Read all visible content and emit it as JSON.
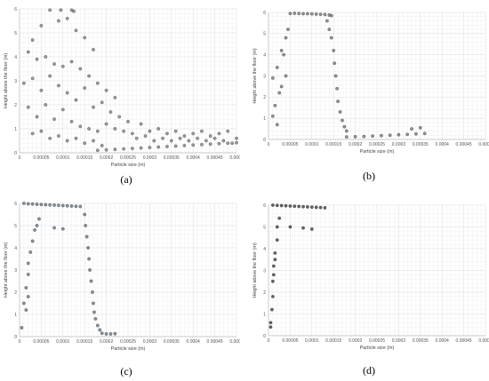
{
  "captions": [
    "(a)",
    "(b)",
    "(c)",
    "(d)"
  ],
  "chart_data": [
    {
      "type": "scatter",
      "title": "",
      "xlabel": "Particle size (m)",
      "ylabel": "Height above the floor (m)",
      "xlim": [
        0,
        0.0005
      ],
      "ylim": [
        0,
        6
      ],
      "xticks": [
        "0",
        "0.00005",
        "0.0001",
        "0.00015",
        "0.0002",
        "0.00025",
        "0.0003",
        "0.00035",
        "0.0004",
        "0.00045",
        "0.0005"
      ],
      "yticks": [
        "0",
        "1",
        "2",
        "3",
        "4",
        "5",
        "6"
      ],
      "grid": true,
      "marker_color": "#7a7a7a",
      "points": [
        [
          7e-05,
          5.95
        ],
        [
          9.5e-05,
          5.95
        ],
        [
          0.00012,
          5.95
        ],
        [
          0.000125,
          5.9
        ],
        [
          3e-05,
          4.7
        ],
        [
          5e-05,
          5.3
        ],
        [
          9e-05,
          5.5
        ],
        [
          0.00011,
          5.6
        ],
        [
          0.00013,
          5.1
        ],
        [
          0.00015,
          4.8
        ],
        [
          0.00017,
          4.3
        ],
        [
          2e-05,
          4.2
        ],
        [
          4e-05,
          3.9
        ],
        [
          6e-05,
          4.0
        ],
        [
          8e-05,
          3.7
        ],
        [
          0.0001,
          3.6
        ],
        [
          0.00012,
          3.8
        ],
        [
          0.00014,
          3.5
        ],
        [
          0.00016,
          3.2
        ],
        [
          0.00018,
          2.9
        ],
        [
          0.0002,
          2.6
        ],
        [
          0.00022,
          2.3
        ],
        [
          1e-05,
          2.9
        ],
        [
          3e-05,
          3.1
        ],
        [
          5e-05,
          2.6
        ],
        [
          7e-05,
          3.2
        ],
        [
          9e-05,
          2.8
        ],
        [
          0.00011,
          2.5
        ],
        [
          0.00013,
          2.2
        ],
        [
          0.00015,
          2.7
        ],
        [
          0.00017,
          1.9
        ],
        [
          0.00019,
          2.1
        ],
        [
          0.00021,
          1.7
        ],
        [
          0.00023,
          1.5
        ],
        [
          0.00025,
          1.3
        ],
        [
          2e-05,
          1.9
        ],
        [
          4e-05,
          1.5
        ],
        [
          6e-05,
          2.0
        ],
        [
          8e-05,
          1.4
        ],
        [
          0.0001,
          1.8
        ],
        [
          0.00012,
          1.3
        ],
        [
          0.00014,
          1.1
        ],
        [
          0.00016,
          1.0
        ],
        [
          0.00018,
          0.9
        ],
        [
          0.0002,
          1.2
        ],
        [
          0.00022,
          1.0
        ],
        [
          0.00024,
          0.9
        ],
        [
          0.00026,
          0.8
        ],
        [
          3e-05,
          0.8
        ],
        [
          5e-05,
          0.9
        ],
        [
          7e-05,
          0.6
        ],
        [
          9e-05,
          0.7
        ],
        [
          0.00011,
          0.5
        ],
        [
          0.00013,
          0.6
        ],
        [
          0.00015,
          0.4
        ],
        [
          0.00017,
          0.5
        ],
        [
          0.00019,
          0.3
        ],
        [
          0.00028,
          1.2
        ],
        [
          0.0003,
          0.9
        ],
        [
          0.00032,
          1.0
        ],
        [
          0.00034,
          0.8
        ],
        [
          0.00036,
          0.9
        ],
        [
          0.00038,
          0.7
        ],
        [
          0.0004,
          0.8
        ],
        [
          0.00042,
          0.9
        ],
        [
          0.00044,
          0.7
        ],
        [
          0.00046,
          0.8
        ],
        [
          0.00048,
          0.9
        ],
        [
          0.0005,
          0.6
        ],
        [
          0.00027,
          0.6
        ],
        [
          0.00029,
          0.7
        ],
        [
          0.00031,
          0.5
        ],
        [
          0.00033,
          0.6
        ],
        [
          0.00035,
          0.5
        ],
        [
          0.00037,
          0.6
        ],
        [
          0.00039,
          0.5
        ],
        [
          0.00041,
          0.6
        ],
        [
          0.00043,
          0.5
        ],
        [
          0.00045,
          0.6
        ],
        [
          0.00047,
          0.5
        ],
        [
          0.00049,
          0.4
        ],
        [
          0.00018,
          0.1
        ],
        [
          0.0002,
          0.12
        ],
        [
          0.00022,
          0.14
        ],
        [
          0.00024,
          0.16
        ],
        [
          0.00026,
          0.18
        ],
        [
          0.00028,
          0.2
        ],
        [
          0.0003,
          0.22
        ],
        [
          0.00032,
          0.24
        ],
        [
          0.00034,
          0.26
        ],
        [
          0.00036,
          0.28
        ],
        [
          0.00038,
          0.3
        ],
        [
          0.0004,
          0.32
        ],
        [
          0.00042,
          0.34
        ],
        [
          0.00044,
          0.36
        ],
        [
          0.00046,
          0.38
        ],
        [
          0.00048,
          0.4
        ],
        [
          0.0005,
          0.42
        ]
      ]
    },
    {
      "type": "scatter",
      "title": "",
      "xlabel": "Particle size (m)",
      "ylabel": "Height above the floor (m)",
      "xlim": [
        0,
        0.0005
      ],
      "ylim": [
        0,
        6
      ],
      "xticks": [
        "0",
        "0.00005",
        "0.0001",
        "0.00015",
        "0.0002",
        "0.00025",
        "0.0003",
        "0.00035",
        "0.0004",
        "0.00045",
        "0.0005"
      ],
      "yticks": [
        "0",
        "1",
        "2",
        "3",
        "4",
        "5",
        "6"
      ],
      "grid": true,
      "marker_color": "#6e6e6e",
      "points": [
        [
          5e-05,
          5.95
        ],
        [
          6e-05,
          5.96
        ],
        [
          7e-05,
          5.95
        ],
        [
          8e-05,
          5.94
        ],
        [
          9e-05,
          5.94
        ],
        [
          0.0001,
          5.93
        ],
        [
          0.00011,
          5.92
        ],
        [
          0.00012,
          5.91
        ],
        [
          0.00013,
          5.9
        ],
        [
          0.00014,
          5.88
        ],
        [
          0.000145,
          5.85
        ],
        [
          1e-05,
          2.9
        ],
        [
          2e-05,
          3.4
        ],
        [
          3e-05,
          4.2
        ],
        [
          4e-05,
          4.8
        ],
        [
          3.5e-05,
          4.0
        ],
        [
          4.5e-05,
          5.2
        ],
        [
          2.5e-05,
          2.2
        ],
        [
          1.5e-05,
          1.6
        ],
        [
          1e-05,
          1.1
        ],
        [
          2e-05,
          0.7
        ],
        [
          3e-05,
          2.5
        ],
        [
          4e-05,
          3.0
        ],
        [
          0.000135,
          5.6
        ],
        [
          0.00014,
          5.2
        ],
        [
          0.000145,
          4.8
        ],
        [
          0.00015,
          4.2
        ],
        [
          0.000152,
          3.6
        ],
        [
          0.000155,
          3.0
        ],
        [
          0.000158,
          2.4
        ],
        [
          0.00016,
          1.8
        ],
        [
          0.000165,
          1.3
        ],
        [
          0.00017,
          0.9
        ],
        [
          0.000175,
          0.6
        ],
        [
          0.00018,
          0.4
        ],
        [
          0.00018,
          0.12
        ],
        [
          0.0002,
          0.13
        ],
        [
          0.00022,
          0.14
        ],
        [
          0.00024,
          0.16
        ],
        [
          0.00026,
          0.18
        ],
        [
          0.00028,
          0.2
        ],
        [
          0.0003,
          0.22
        ],
        [
          0.00032,
          0.24
        ],
        [
          0.00034,
          0.26
        ],
        [
          0.00036,
          0.28
        ],
        [
          0.00035,
          0.55
        ],
        [
          0.00033,
          0.5
        ]
      ]
    },
    {
      "type": "scatter",
      "title": "",
      "xlabel": "Particle size (m)",
      "ylabel": "Height above the floor (m)",
      "xlim": [
        0,
        0.0005
      ],
      "ylim": [
        0,
        6
      ],
      "xticks": [
        "0",
        "0.00005",
        "0.0001",
        "0.00015",
        "0.0002",
        "0.00025",
        "0.0003",
        "0.00035",
        "0.0004",
        "0.00045",
        "0.0005"
      ],
      "yticks": [
        "0",
        "1",
        "2",
        "3",
        "4",
        "5",
        "6"
      ],
      "grid": true,
      "marker_color": "#5c6f7d",
      "points": [
        [
          1e-05,
          6.0
        ],
        [
          2e-05,
          5.98
        ],
        [
          3e-05,
          5.97
        ],
        [
          4e-05,
          5.96
        ],
        [
          5e-05,
          5.95
        ],
        [
          6e-05,
          5.94
        ],
        [
          7e-05,
          5.93
        ],
        [
          8e-05,
          5.92
        ],
        [
          9e-05,
          5.91
        ],
        [
          0.0001,
          5.9
        ],
        [
          0.00011,
          5.89
        ],
        [
          0.00012,
          5.88
        ],
        [
          0.00013,
          5.87
        ],
        [
          0.00014,
          5.86
        ],
        [
          0.00015,
          5.5
        ],
        [
          0.000152,
          5.0
        ],
        [
          0.000155,
          4.5
        ],
        [
          0.000158,
          4.0
        ],
        [
          0.00016,
          3.5
        ],
        [
          0.000162,
          3.0
        ],
        [
          0.000165,
          2.5
        ],
        [
          0.000168,
          2.0
        ],
        [
          0.00017,
          1.5
        ],
        [
          0.000172,
          1.1
        ],
        [
          0.000175,
          0.8
        ],
        [
          0.00018,
          0.5
        ],
        [
          0.000185,
          0.3
        ],
        [
          0.00019,
          0.15
        ],
        [
          0.0002,
          0.12
        ],
        [
          0.00021,
          0.12
        ],
        [
          0.00022,
          0.13
        ],
        [
          5e-06,
          0.4
        ],
        [
          1e-05,
          1.5
        ],
        [
          1.5e-05,
          2.2
        ],
        [
          2e-05,
          2.8
        ],
        [
          2e-05,
          3.3
        ],
        [
          2.5e-05,
          3.8
        ],
        [
          3e-05,
          4.3
        ],
        [
          3.5e-05,
          4.8
        ],
        [
          4e-05,
          5.0
        ],
        [
          4.5e-05,
          5.3
        ],
        [
          2e-05,
          1.8
        ],
        [
          1.5e-05,
          1.2
        ],
        [
          8e-05,
          4.9
        ],
        [
          0.0001,
          4.85
        ]
      ]
    },
    {
      "type": "scatter",
      "title": "",
      "xlabel": "Particle size (m)",
      "ylabel": "Height above the floor (m)",
      "xlim": [
        0,
        0.0005
      ],
      "ylim": [
        0,
        6
      ],
      "xticks": [
        "0",
        "0.00005",
        "0.0001",
        "0.00015",
        "0.0002",
        "0.00025",
        "0.0003",
        "0.00035",
        "0.0004",
        "0.00045",
        "0.0005"
      ],
      "yticks": [
        "0",
        "1",
        "2",
        "3",
        "4",
        "5",
        "6"
      ],
      "grid": true,
      "marker_color": "#2f2f2f",
      "points": [
        [
          1e-05,
          6.0
        ],
        [
          2e-05,
          5.99
        ],
        [
          3e-05,
          5.98
        ],
        [
          4e-05,
          5.97
        ],
        [
          5e-05,
          5.96
        ],
        [
          6e-05,
          5.95
        ],
        [
          7e-05,
          5.94
        ],
        [
          8e-05,
          5.93
        ],
        [
          9e-05,
          5.92
        ],
        [
          0.0001,
          5.91
        ],
        [
          0.00011,
          5.9
        ],
        [
          0.00012,
          5.89
        ],
        [
          0.00013,
          5.88
        ],
        [
          5e-06,
          0.4
        ],
        [
          5e-06,
          0.6
        ],
        [
          8e-06,
          1.2
        ],
        [
          1e-05,
          1.8
        ],
        [
          1e-05,
          2.5
        ],
        [
          1.2e-05,
          2.8
        ],
        [
          1.2e-05,
          3.2
        ],
        [
          1.5e-05,
          3.5
        ],
        [
          1.5e-05,
          3.8
        ],
        [
          2e-05,
          4.4
        ],
        [
          2e-05,
          5.0
        ],
        [
          2.5e-05,
          5.4
        ],
        [
          5e-05,
          5.0
        ],
        [
          8e-05,
          4.95
        ],
        [
          0.0001,
          4.9
        ]
      ]
    }
  ]
}
